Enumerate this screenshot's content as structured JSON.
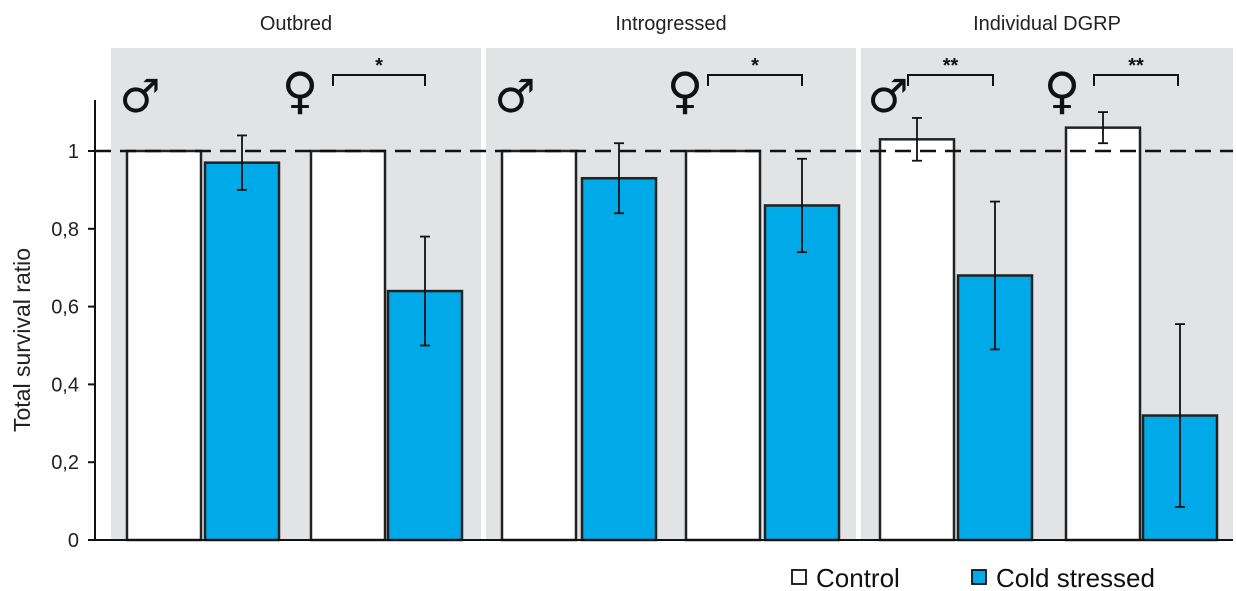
{
  "chart_data": {
    "type": "bar",
    "ylabel": "Total survival ratio",
    "xlabel": "",
    "ylim": [
      0,
      1.13
    ],
    "y_ticks": [
      {
        "value": 0,
        "label": "0"
      },
      {
        "value": 0.2,
        "label": "0,2"
      },
      {
        "value": 0.4,
        "label": "0,4"
      },
      {
        "value": 0.6,
        "label": "0,6"
      },
      {
        "value": 0.8,
        "label": "0,8"
      },
      {
        "value": 1,
        "label": "1"
      }
    ],
    "reference_line": 1,
    "legend": {
      "placement": "bottom-right",
      "entries": [
        {
          "label": "Control",
          "color": "#ffffff"
        },
        {
          "label": "Cold stressed",
          "color": "#00a9e8"
        }
      ]
    },
    "colors": {
      "control": "#ffffff",
      "cold": "#00a9e8",
      "panel_bg": "#e2e3e5"
    },
    "panels": [
      {
        "title": "Outbred",
        "groups": [
          {
            "sex_symbol": "♂",
            "control": 1.0,
            "control_err": null,
            "cold": 0.97,
            "cold_err": 0.07,
            "significance": ""
          },
          {
            "sex_symbol": "♀",
            "control": 1.0,
            "control_err": null,
            "cold": 0.64,
            "cold_err": 0.14,
            "significance": "*"
          }
        ]
      },
      {
        "title": "Introgressed",
        "groups": [
          {
            "sex_symbol": "♂",
            "control": 1.0,
            "control_err": null,
            "cold": 0.93,
            "cold_err": 0.09,
            "significance": ""
          },
          {
            "sex_symbol": "♀",
            "control": 1.0,
            "control_err": null,
            "cold": 0.86,
            "cold_err": 0.12,
            "significance": "*"
          }
        ]
      },
      {
        "title": "Individual DGRP",
        "groups": [
          {
            "sex_symbol": "♂",
            "control": 1.03,
            "control_err": 0.055,
            "cold": 0.68,
            "cold_err": 0.19,
            "significance": "**"
          },
          {
            "sex_symbol": "♀",
            "control": 1.06,
            "control_err": 0.04,
            "cold": 0.32,
            "cold_err": 0.235,
            "significance": "**"
          }
        ]
      }
    ]
  }
}
